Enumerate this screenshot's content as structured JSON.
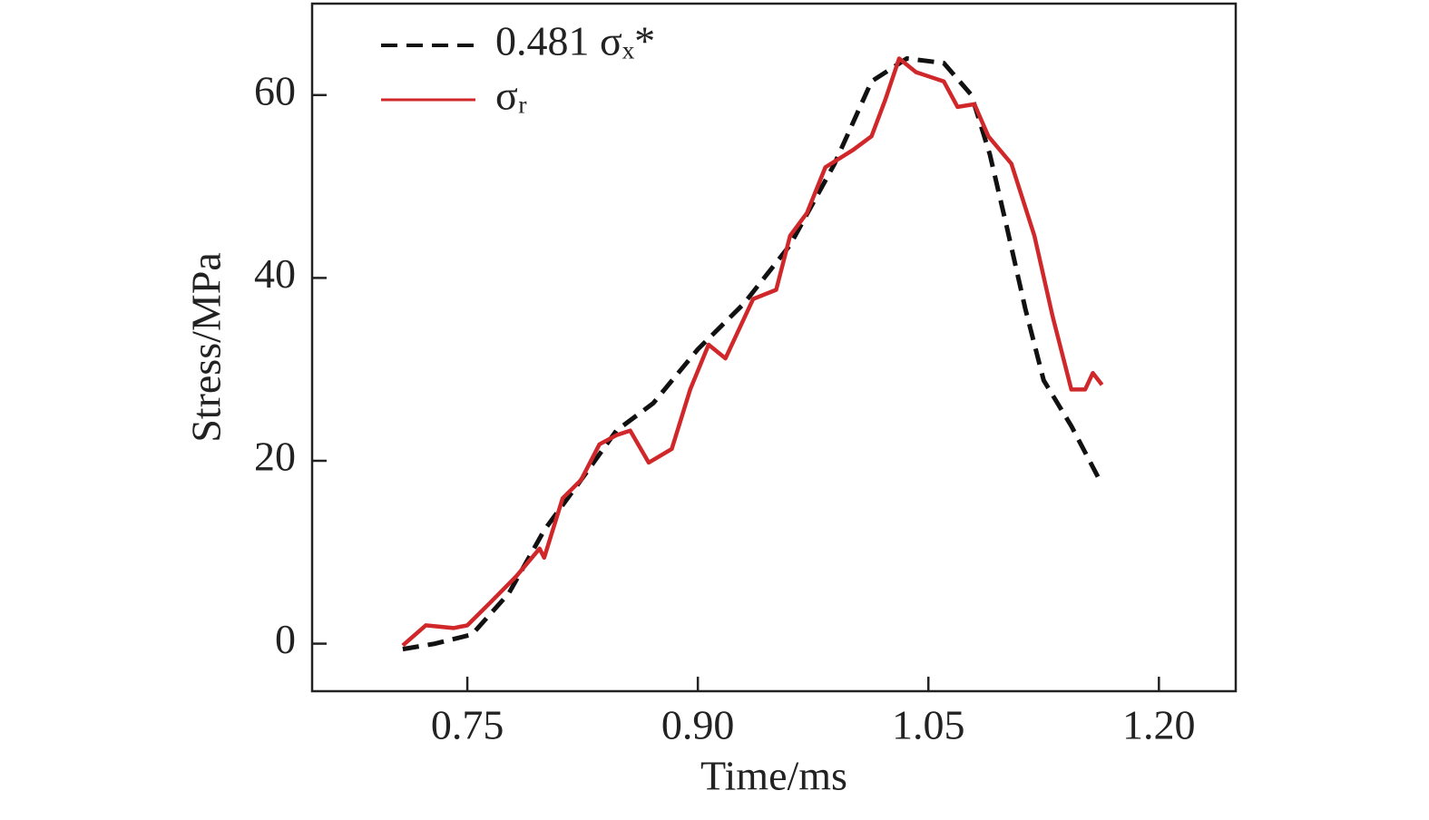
{
  "chart_data": {
    "type": "line",
    "xlabel": "Time/ms",
    "ylabel": "Stress/MPa",
    "xlim": [
      0.649,
      1.25
    ],
    "ylim": [
      -5.2,
      70
    ],
    "xticks": [
      0.75,
      {
        "value": 0.9,
        "label": "0.90"
      },
      1.05,
      {
        "value": 1.2,
        "label": "1.20"
      }
    ],
    "yticks": [
      0,
      20,
      40,
      60
    ],
    "legend": "upper left",
    "series": [
      {
        "name": "0.481 σₓ*",
        "color": "#111111",
        "dash": true,
        "x": [
          0.708,
          0.729,
          0.753,
          0.777,
          0.8,
          0.824,
          0.847,
          0.871,
          0.9,
          0.93,
          0.96,
          0.989,
          1.013,
          1.036,
          1.06,
          1.078,
          1.09,
          1.101,
          1.113,
          1.125,
          1.143,
          1.163
        ],
        "values": [
          -0.6,
          0,
          1.0,
          5.5,
          12.4,
          17.9,
          23.3,
          26.3,
          32.2,
          37.2,
          43.6,
          52.5,
          61.5,
          64.0,
          63.5,
          60.0,
          53.5,
          45.6,
          36.7,
          28.8,
          23.8,
          17.4
        ]
      },
      {
        "name": "σᵣ",
        "color": "#d0282a",
        "dash": false,
        "x": [
          0.708,
          0.723,
          0.741,
          0.75,
          0.765,
          0.782,
          0.797,
          0.8,
          0.812,
          0.824,
          0.836,
          0.847,
          0.856,
          0.868,
          0.883,
          0.895,
          0.907,
          0.918,
          0.936,
          0.951,
          0.96,
          0.971,
          0.983,
          1.001,
          1.013,
          1.022,
          1.031,
          1.042,
          1.06,
          1.069,
          1.08,
          1.089,
          1.104,
          1.119,
          1.131,
          1.143,
          1.152,
          1.157,
          1.163
        ],
        "values": [
          -0.2,
          2.0,
          1.7,
          2.0,
          4.5,
          7.4,
          10.4,
          9.4,
          15.9,
          17.9,
          21.8,
          22.8,
          23.3,
          19.8,
          21.3,
          27.8,
          32.7,
          31.2,
          37.7,
          38.7,
          44.6,
          47.1,
          52.1,
          54.0,
          55.5,
          59.5,
          64.0,
          62.5,
          61.5,
          58.7,
          59.0,
          55.5,
          52.5,
          44.6,
          35.7,
          27.8,
          27.8,
          29.6,
          28.3
        ]
      }
    ]
  }
}
